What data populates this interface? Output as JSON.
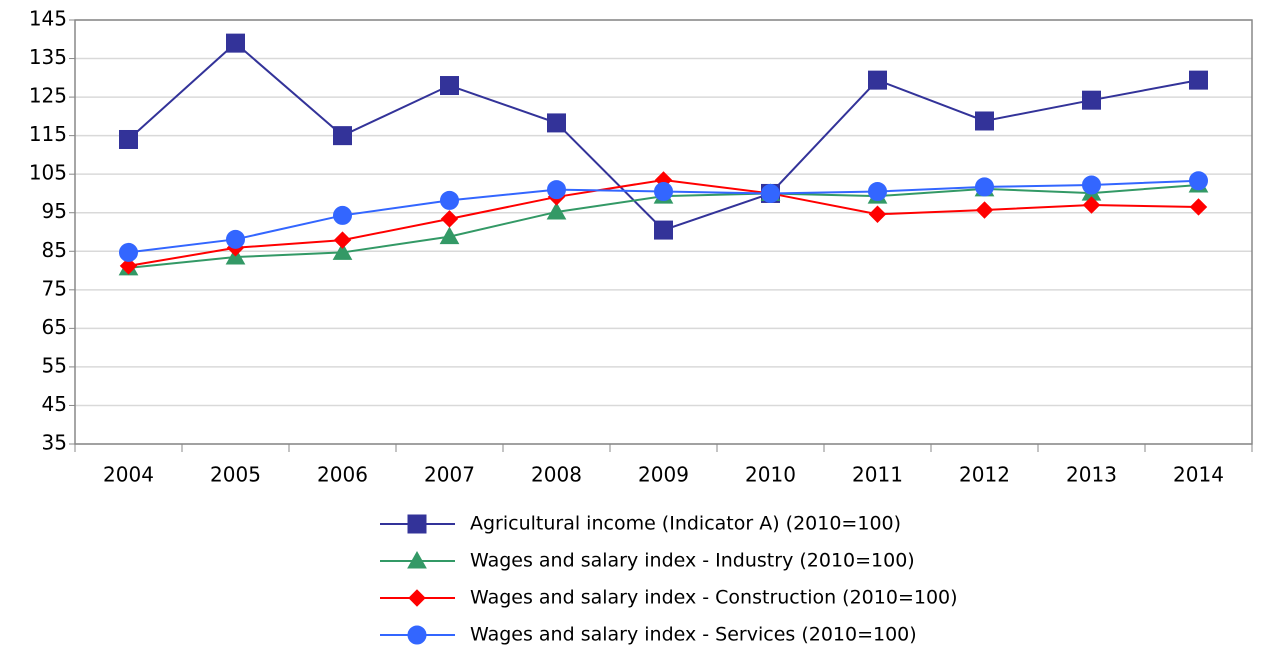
{
  "chart_data": {
    "type": "line",
    "categories": [
      "2004",
      "2005",
      "2006",
      "2007",
      "2008",
      "2009",
      "2010",
      "2011",
      "2012",
      "2013",
      "2014"
    ],
    "series": [
      {
        "name": "Agricultural income (Indicator A) (2010=100)",
        "color": "#333399",
        "marker": "square",
        "values": [
          114,
          139,
          115,
          128,
          118.3,
          90.5,
          100,
          129.4,
          118.8,
          124.2,
          129.4
        ]
      },
      {
        "name": "Wages and salary index - Industry (2010=100)",
        "color": "#339966",
        "marker": "triangle",
        "values": [
          80.7,
          83.5,
          84.7,
          88.8,
          95.2,
          99.3,
          100,
          99.3,
          101.2,
          100.1,
          102.2
        ]
      },
      {
        "name": "Wages and salary index - Construction (2010=100)",
        "color": "#ff0000",
        "marker": "diamond",
        "values": [
          81.2,
          85.9,
          87.9,
          93.4,
          99.1,
          103.5,
          100,
          94.6,
          95.7,
          97,
          96.5
        ]
      },
      {
        "name": "Wages and salary index - Services (2010=100)",
        "color": "#3366ff",
        "marker": "circle",
        "values": [
          84.7,
          88.1,
          94.3,
          98.2,
          101,
          100.5,
          100,
          100.5,
          101.7,
          102.2,
          103.3
        ]
      }
    ],
    "ylim": [
      35,
      145
    ],
    "yticks": [
      35,
      45,
      55,
      65,
      75,
      85,
      95,
      105,
      115,
      125,
      135,
      145
    ],
    "grid": true,
    "legend": "bottom"
  }
}
